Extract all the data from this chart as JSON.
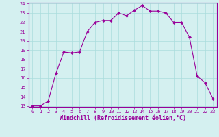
{
  "x": [
    0,
    1,
    2,
    3,
    4,
    5,
    6,
    7,
    8,
    9,
    10,
    11,
    12,
    13,
    14,
    15,
    16,
    17,
    18,
    19,
    20,
    21,
    22,
    23
  ],
  "y": [
    13.0,
    13.0,
    13.5,
    16.5,
    18.8,
    18.7,
    18.8,
    21.0,
    22.0,
    22.2,
    22.2,
    23.0,
    22.7,
    23.3,
    23.8,
    23.2,
    23.2,
    23.0,
    22.0,
    22.0,
    20.4,
    16.2,
    15.5,
    13.8
  ],
  "line_color": "#990099",
  "marker": "D",
  "marker_size": 2,
  "bg_color": "#d4f0f0",
  "grid_color": "#aadddd",
  "xlabel": "Windchill (Refroidissement éolien,°C)",
  "ylim_min": 13,
  "ylim_max": 24,
  "xlim_min": -0.5,
  "xlim_max": 23.5,
  "yticks": [
    13,
    14,
    15,
    16,
    17,
    18,
    19,
    20,
    21,
    22,
    23,
    24
  ],
  "xticks": [
    0,
    1,
    2,
    3,
    4,
    5,
    6,
    7,
    8,
    9,
    10,
    11,
    12,
    13,
    14,
    15,
    16,
    17,
    18,
    19,
    20,
    21,
    22,
    23
  ],
  "tick_color": "#990099",
  "label_color": "#990099",
  "spine_color": "#990099",
  "tick_fontsize": 5.0,
  "xlabel_fontsize": 6.0,
  "linewidth": 0.8
}
